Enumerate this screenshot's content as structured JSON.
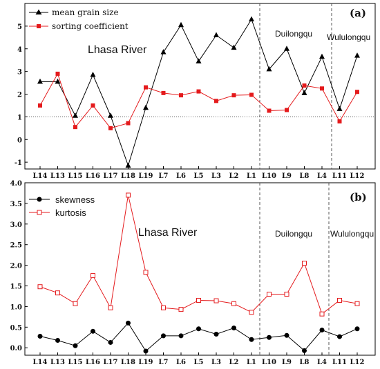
{
  "chart_data": [
    {
      "type": "line",
      "panel_label": "(a)",
      "categories": [
        "L14",
        "L13",
        "L15",
        "L16",
        "L17",
        "L18",
        "L19",
        "L7",
        "L6",
        "L5",
        "L3",
        "L2",
        "L1",
        "L10",
        "L9",
        "L8",
        "L4",
        "L11",
        "L12"
      ],
      "series": [
        {
          "name": "mean grain size",
          "color": "#000000",
          "marker": "triangle",
          "values": [
            2.55,
            2.55,
            1.05,
            2.85,
            1.05,
            -1.15,
            1.4,
            3.85,
            5.05,
            3.45,
            4.6,
            4.05,
            5.3,
            3.1,
            4.0,
            2.05,
            3.65,
            1.35,
            3.7
          ]
        },
        {
          "name": "sorting coefficient",
          "color": "#e41a1c",
          "marker": "square",
          "values": [
            1.5,
            2.9,
            0.55,
            1.5,
            0.5,
            0.72,
            2.3,
            2.05,
            1.95,
            2.12,
            1.7,
            1.95,
            1.97,
            1.27,
            1.3,
            2.38,
            2.25,
            0.8,
            2.1
          ]
        }
      ],
      "ylim": [
        -1.3,
        6.0
      ],
      "yticks": [
        "-1",
        "0",
        "1",
        "2",
        "3",
        "4",
        "5"
      ],
      "reference_line_y": 1,
      "region_labels": [
        "Lhasa River",
        "Duilongqu",
        "Wululongqu"
      ],
      "legend_position": "top-left"
    },
    {
      "type": "line",
      "panel_label": "(b)",
      "categories": [
        "L14",
        "L13",
        "L15",
        "L16",
        "L17",
        "L18",
        "L19",
        "L7",
        "L6",
        "L5",
        "L3",
        "L2",
        "L1",
        "L10",
        "L9",
        "L8",
        "L4",
        "L11",
        "L12"
      ],
      "series": [
        {
          "name": "skewness",
          "color": "#000000",
          "marker": "circle",
          "values": [
            0.28,
            0.18,
            0.05,
            0.4,
            0.13,
            0.6,
            -0.08,
            0.29,
            0.29,
            0.46,
            0.33,
            0.48,
            0.2,
            0.25,
            0.3,
            -0.07,
            0.43,
            0.27,
            0.46
          ]
        },
        {
          "name": "kurtosis",
          "color": "#e41a1c",
          "marker": "open-square",
          "values": [
            1.48,
            1.33,
            1.07,
            1.75,
            0.97,
            3.7,
            1.83,
            0.97,
            0.93,
            1.15,
            1.14,
            1.07,
            0.86,
            1.3,
            1.3,
            2.05,
            0.82,
            1.15,
            1.07
          ]
        }
      ],
      "ylim": [
        -0.18,
        4.0
      ],
      "yticks": [
        "0.0",
        "0.5",
        "1.0",
        "1.5",
        "2.0",
        "2.5",
        "3.0",
        "3.5",
        "4.0"
      ],
      "region_labels": [
        "Lhasa River",
        "Duilongqu",
        "Wululongqu"
      ],
      "legend_position": "top-left"
    }
  ]
}
